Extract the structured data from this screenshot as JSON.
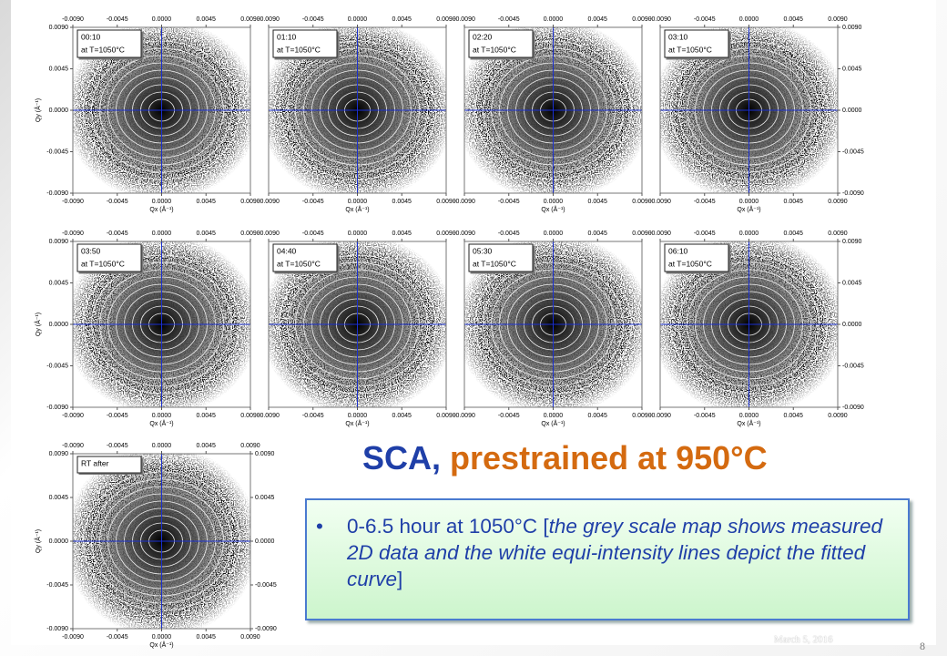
{
  "panels": [
    {
      "time": "00:10",
      "temp": "at T=1050°C"
    },
    {
      "time": "01:10",
      "temp": "at T=1050°C"
    },
    {
      "time": "02:20",
      "temp": "at T=1050°C"
    },
    {
      "time": "03:10",
      "temp": "at T=1050°C"
    },
    {
      "time": "03:50",
      "temp": "at T=1050°C"
    },
    {
      "time": "04:40",
      "temp": "at T=1050°C"
    },
    {
      "time": "05:30",
      "temp": "at T=1050°C"
    },
    {
      "time": "06:10",
      "temp": "at T=1050°C"
    },
    {
      "time": "RT after"
    }
  ],
  "axes": {
    "ticks": [
      {
        "value": -0.009,
        "label": "-0.0090"
      },
      {
        "value": -0.0045,
        "label": "-0.0045"
      },
      {
        "value": 0,
        "label": "0.0000"
      },
      {
        "value": 0.0045,
        "label": "0.0045"
      },
      {
        "value": 0.009,
        "label": "0.0090"
      }
    ],
    "x_label": "Qx (Å⁻¹)",
    "y_label": "Qy (Å⁻¹)"
  },
  "title": {
    "lead": "SCA,",
    "rest": "prestrained at 950°C"
  },
  "bullet": {
    "before": "0-6.5 hour at 1050°C [",
    "italic": "the grey scale map shows measured 2D data and the white equi-intensity lines depict the fitted curve",
    "after": "]"
  },
  "footer": {
    "date": "March 5, 2016",
    "page": "8"
  }
}
